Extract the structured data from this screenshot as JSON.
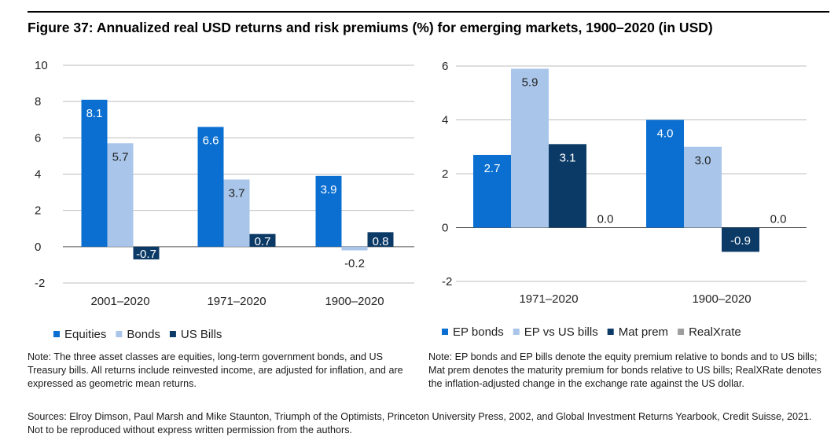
{
  "figure_title": "Figure 37: Annualized real USD returns and risk premiums (%) for emerging markets, 1900–2020 (in USD)",
  "colors": {
    "equities": "#0a6fd1",
    "bonds": "#a9c6ea",
    "bills": "#0c3a66",
    "realxrate": "#9e9e9e",
    "grid": "#bdbdbd",
    "axis": "#555555"
  },
  "chart_data": [
    {
      "type": "bar",
      "title": "",
      "xlabel": "",
      "ylabel": "",
      "ylim": [
        -2,
        10
      ],
      "yticks": [
        10,
        8,
        6,
        4,
        2,
        0,
        -2
      ],
      "categories": [
        "2001–2020",
        "1971–2020",
        "1900–2020"
      ],
      "series": [
        {
          "name": "Equities",
          "values": [
            8.1,
            6.6,
            3.9
          ],
          "labels": [
            "8.1",
            "6.6",
            "3.9"
          ],
          "color_key": "equities"
        },
        {
          "name": "Bonds",
          "values": [
            5.7,
            3.7,
            -0.2
          ],
          "labels": [
            "5.7",
            "3.7",
            "-0.2"
          ],
          "color_key": "bonds"
        },
        {
          "name": "US Bills",
          "values": [
            -0.7,
            0.7,
            0.8
          ],
          "labels": [
            "-0.7",
            "0.7",
            "0.8"
          ],
          "color_key": "bills"
        }
      ],
      "legend_position": "bottom-left"
    },
    {
      "type": "bar",
      "title": "",
      "xlabel": "",
      "ylabel": "",
      "ylim": [
        -2,
        6
      ],
      "yticks": [
        6,
        4,
        2,
        0,
        -2
      ],
      "categories": [
        "1971–2020",
        "1900–2020"
      ],
      "series": [
        {
          "name": "EP bonds",
          "values": [
            2.7,
            4.0
          ],
          "labels": [
            "2.7",
            "4.0"
          ],
          "color_key": "equities"
        },
        {
          "name": "EP vs US bills",
          "values": [
            5.9,
            3.0
          ],
          "labels": [
            "5.9",
            "3.0"
          ],
          "color_key": "bonds"
        },
        {
          "name": "Mat prem",
          "values": [
            3.1,
            -0.9
          ],
          "labels": [
            "3.1",
            "-0.9"
          ],
          "color_key": "bills"
        },
        {
          "name": "RealXrate",
          "values": [
            0.0,
            0.0
          ],
          "labels": [
            "0.0",
            "0.0"
          ],
          "color_key": "realxrate"
        }
      ],
      "legend_position": "bottom-left"
    }
  ],
  "note_left": "Note:  The three asset classes are equities, long-term government bonds, and US Treasury bills. All returns include reinvested income, are adjusted for inflation, and are expressed as geometric mean returns.",
  "note_right": "Note: EP bonds and EP bills denote the equity premium relative to bonds and to US bills; Mat prem denotes the maturity premium for bonds relative to US bills; RealXRate denotes the inflation-adjusted change in the exchange rate against the US dollar.",
  "sources": "Sources: Elroy Dimson, Paul Marsh and Mike Staunton, Triumph of the Optimists, Princeton University Press, 2002, and Global Investment Returns Yearbook, Credit Suisse, 2021. Not to be reproduced without express written permission from the authors."
}
